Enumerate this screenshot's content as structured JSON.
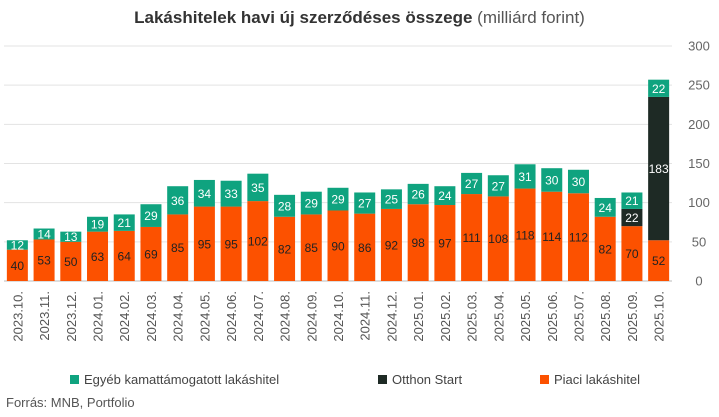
{
  "chart_data": {
    "type": "bar",
    "stacked": true,
    "title_bold": "Lakáshitelek havi új szerződéses összege",
    "title_unit": "(milliárd forint)",
    "categories": [
      "2023.10.",
      "2023.11.",
      "2023.12.",
      "2024.01.",
      "2024.02.",
      "2024.03.",
      "2024.04.",
      "2024.05.",
      "2024.06.",
      "2024.07.",
      "2024.08.",
      "2024.09.",
      "2024.10.",
      "2024.11.",
      "2024.12.",
      "2025.01.",
      "2025.02.",
      "2025.03.",
      "2025.04.",
      "2025.05.",
      "2025.06.",
      "2025.07.",
      "2025.08.",
      "2025.09.",
      "2025.10."
    ],
    "series": [
      {
        "name": "Piaci lakáshitel",
        "color": "#fc5100",
        "values": [
          40,
          53,
          50,
          63,
          64,
          69,
          85,
          95,
          95,
          102,
          82,
          85,
          90,
          86,
          92,
          98,
          97,
          111,
          108,
          118,
          114,
          112,
          82,
          70,
          52
        ]
      },
      {
        "name": "Otthon Start",
        "color": "#1e2a25",
        "values": [
          0,
          0,
          0,
          0,
          0,
          0,
          0,
          0,
          0,
          0,
          0,
          0,
          0,
          0,
          0,
          0,
          0,
          0,
          0,
          0,
          0,
          0,
          0,
          22,
          183
        ]
      },
      {
        "name": "Egyéb kamattámogatott lakáshitel",
        "color": "#0fa37f",
        "values": [
          12,
          14,
          13,
          19,
          21,
          29,
          36,
          34,
          33,
          35,
          28,
          29,
          29,
          27,
          25,
          26,
          24,
          27,
          27,
          31,
          30,
          30,
          24,
          21,
          22
        ]
      }
    ],
    "ylim": [
      0,
      300
    ],
    "yticks": [
      0,
      50,
      100,
      150,
      200,
      250,
      300
    ],
    "grid": true,
    "legend_position": "bottom"
  },
  "legend": [
    {
      "label": "Egyéb kamattámogatott lakáshitel",
      "color": "#0fa37f"
    },
    {
      "label": "Otthon Start",
      "color": "#1e2a25"
    },
    {
      "label": "Piaci lakáshitel",
      "color": "#fc5100"
    }
  ],
  "source": "Forrás: MNB, Portfolio"
}
